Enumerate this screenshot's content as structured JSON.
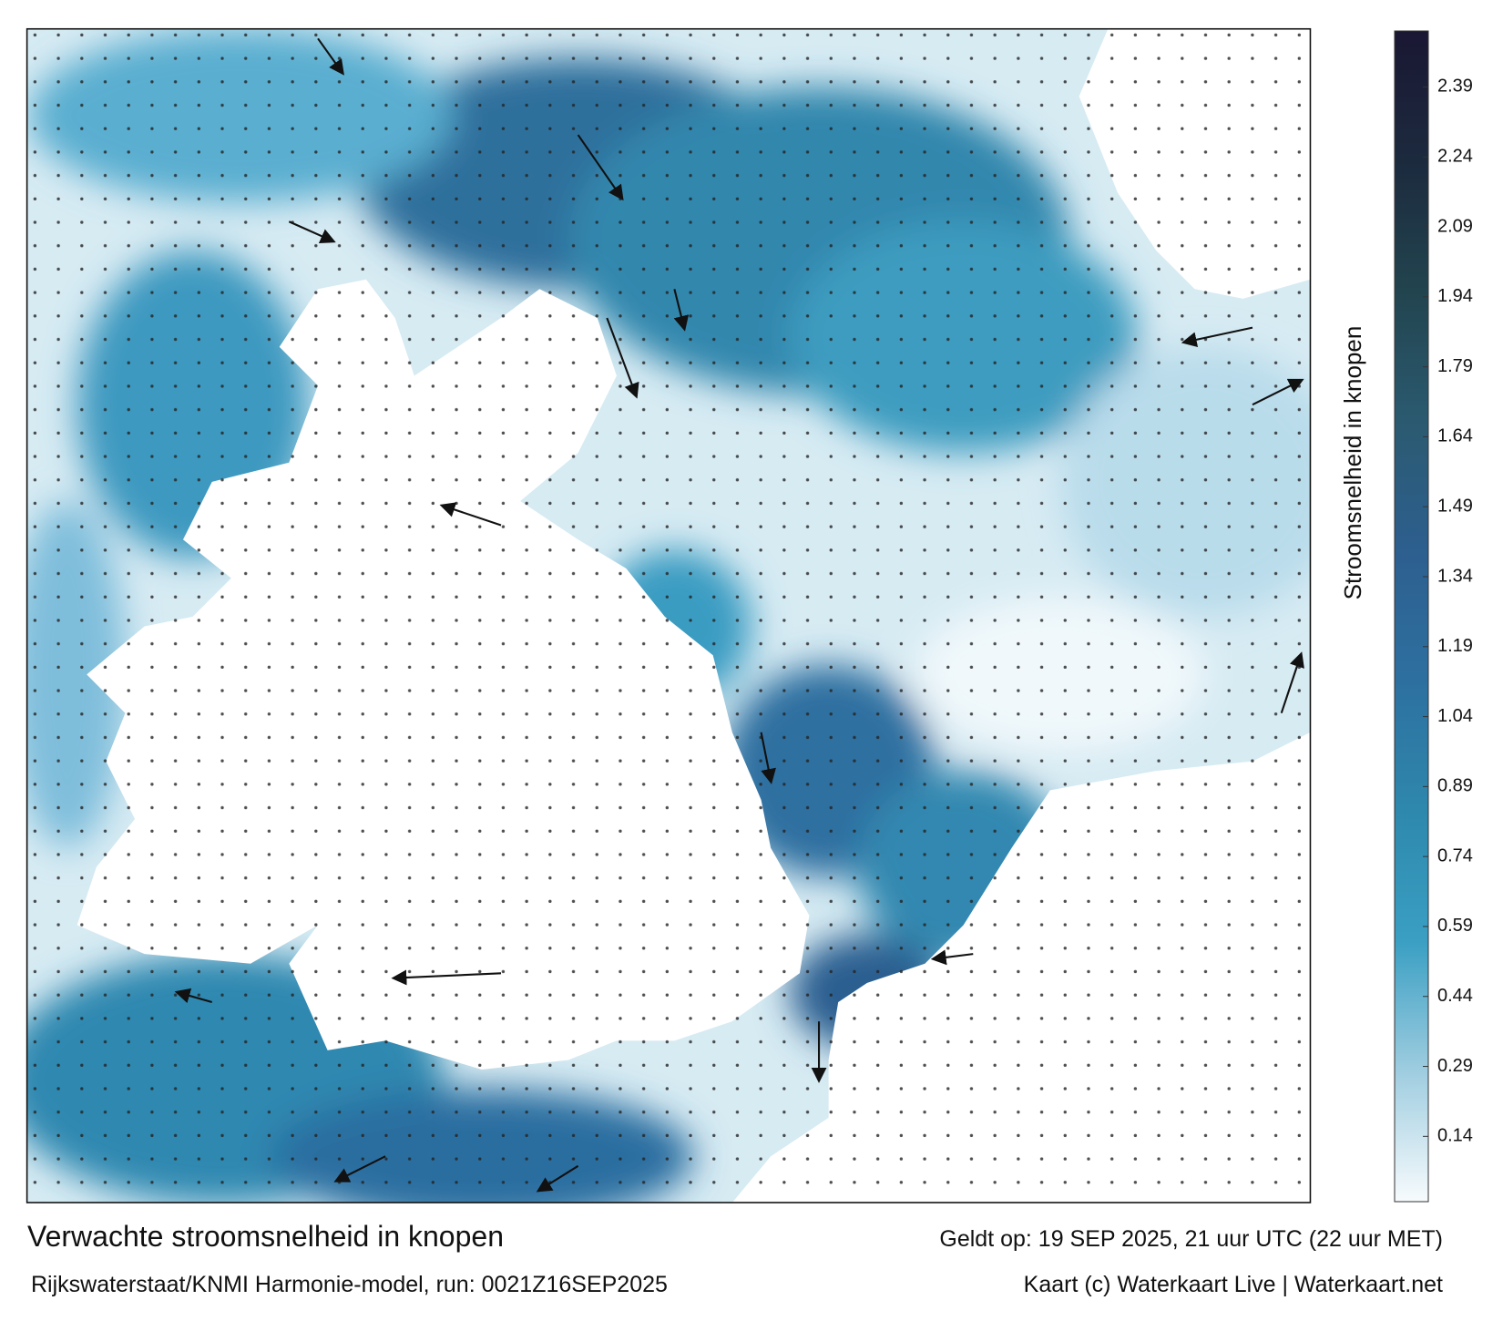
{
  "title": "Verwachte stroomsnelheid in knopen",
  "subtitle": "Rijkswaterstaat/KNMI Harmonie-model, run: 0021Z16SEP2025",
  "valid": "Geldt op: 19 SEP 2025, 21 uur UTC (22 uur MET)",
  "credit": "Kaart (c) Waterkaart Live | Waterkaart.net",
  "colorbar": {
    "label": "Stroomsnelheid in knopen",
    "lim": [
      0,
      2.51
    ],
    "ticks": [
      0.14,
      0.29,
      0.44,
      0.59,
      0.74,
      0.89,
      1.04,
      1.19,
      1.34,
      1.49,
      1.64,
      1.79,
      1.94,
      2.09,
      2.24,
      2.39
    ],
    "colors": [
      "#f7fbfd",
      "#9fcde0",
      "#3a9fc3",
      "#2e88ad",
      "#2d70a0",
      "#2d5f8f",
      "#2b5a70",
      "#22444f",
      "#1c2a3e",
      "#1a1733"
    ]
  }
}
